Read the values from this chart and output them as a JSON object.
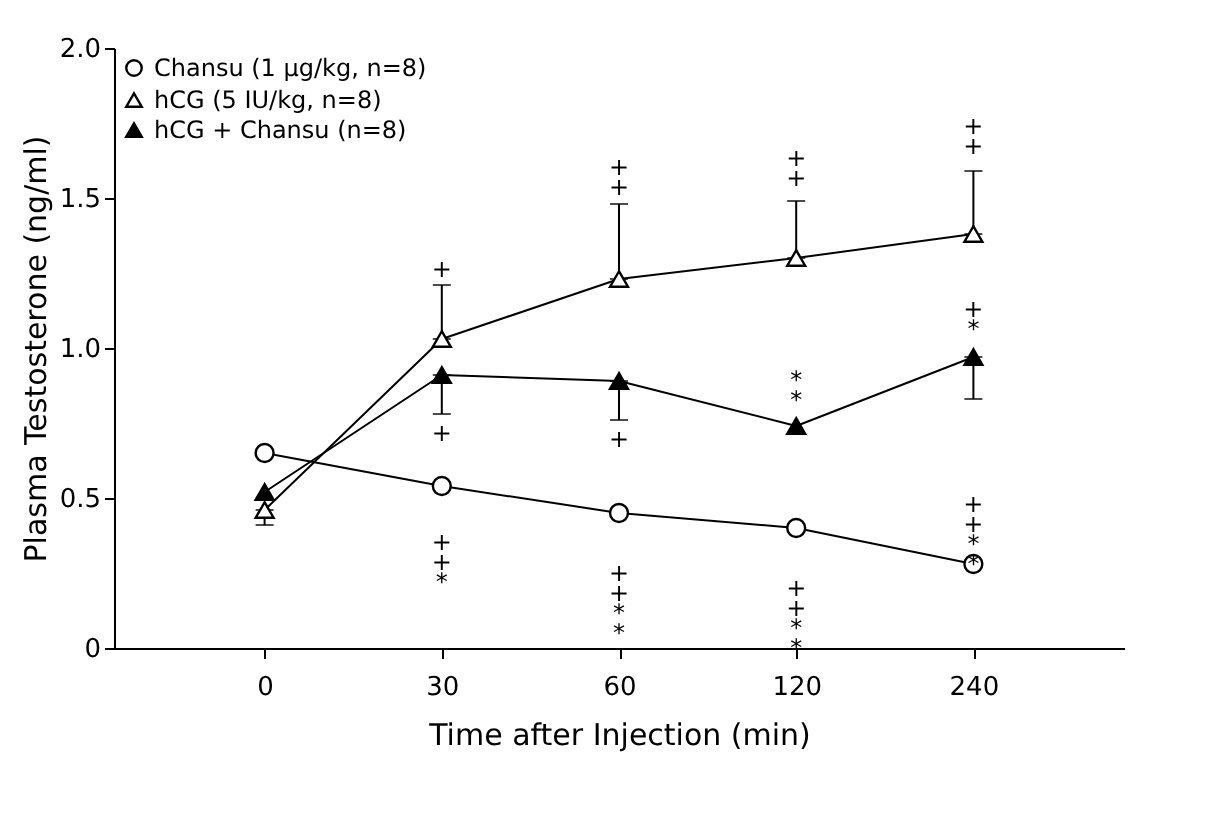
{
  "chart_data": {
    "type": "line",
    "xlabel": "Time after Injection (min)",
    "ylabel": "Plasma Testosterone (ng/ml)",
    "categories": [
      "0",
      "30",
      "60",
      "120",
      "240"
    ],
    "ylim": [
      0,
      2
    ],
    "yticks": [
      0,
      0.5,
      {
        "value": 1,
        "label": "1.0"
      },
      1.5,
      {
        "value": 2,
        "label": "2.0"
      }
    ],
    "legend": "top left",
    "grid": false,
    "series": [
      {
        "name": "Chansu (1 µg/kg, n=8)",
        "color": "#000000",
        "marker": "circle",
        "values": [
          0.65,
          0.54,
          0.45,
          0.4,
          0.28
        ]
      },
      {
        "name": "hCG (5 IU/kg, n=8)",
        "color": "#000000",
        "marker": "triangle",
        "values": [
          0.46,
          1.03,
          1.23,
          1.3,
          1.38
        ],
        "errors": [
          [
            0.41,
            0.46
          ],
          [
            1.03,
            1.21
          ],
          [
            1.23,
            1.48
          ],
          [
            1.3,
            1.49
          ],
          [
            1.38,
            1.59
          ]
        ]
      },
      {
        "name": "hCG + Chansu (n=8)",
        "color": "#000000",
        "marker": "triangle",
        "values": [
          0.52,
          0.91,
          0.89,
          0.74,
          0.97
        ],
        "errors": [
          null,
          [
            0.78,
            0.91
          ],
          [
            0.76,
            0.89
          ],
          null,
          [
            0.83,
            0.97
          ]
        ]
      }
    ],
    "annotations": [
      "+",
      "+",
      "+\n+\n*",
      "+\n+",
      "+",
      "+\n+\n*\n*",
      "+\n+",
      "*\n*",
      "+\n+\n*\n*",
      "+\n+",
      "+\n*",
      "+\n+\n*\n*"
    ]
  }
}
